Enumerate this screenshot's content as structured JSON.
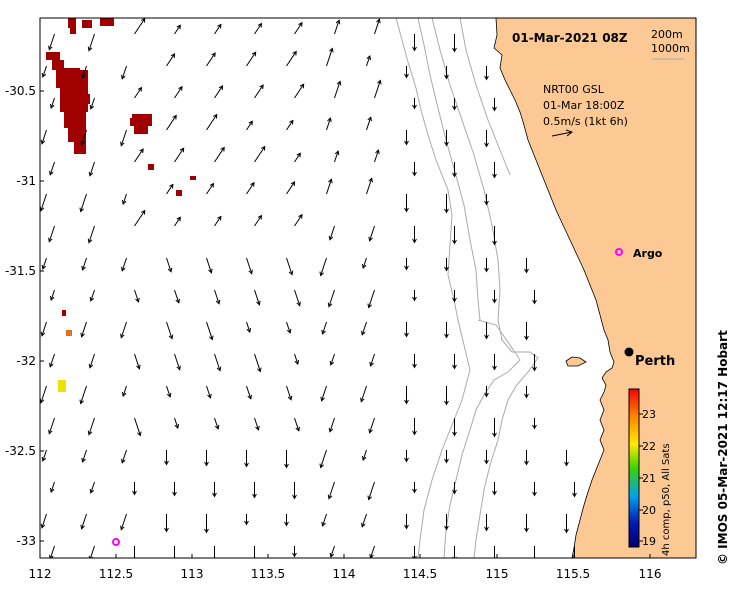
{
  "title": "01-Mar-2021 08Z",
  "depth_contours": [
    "200m",
    "1000m"
  ],
  "current_legend": {
    "source": "NRT00 GSL",
    "time": "01-Mar 18:00Z",
    "scale": "0.5m/s (1kt 6h)"
  },
  "places": {
    "perth": "Perth",
    "argo": "Argo"
  },
  "axes": {
    "x_labels": [
      "112",
      "112.5",
      "113",
      "113.5",
      "114",
      "114.5",
      "115",
      "115.5",
      "116"
    ],
    "y_labels": [
      "-30.5",
      "-31",
      "-31.5",
      "-32",
      "-32.5",
      "-33"
    ]
  },
  "colorbar": {
    "label": "4h comp, p50, All Sats",
    "ticks": [
      "23",
      "22",
      "21",
      "20",
      "19"
    ],
    "min": 18.8,
    "max": 23.7,
    "colors": [
      "#f80000",
      "#ff8a00",
      "#ffea00",
      "#39d600",
      "#00a0f0",
      "#0018b0",
      "#000070"
    ]
  },
  "credit": "© IMOS 05-Mar-2021 12:17 Hobart",
  "colors": {
    "land": "#fcc894",
    "ocean": "#ffffff",
    "contour": "#aaaaaa",
    "sst_hot": "#a00000",
    "argo_marker": "#ff00ff"
  }
}
